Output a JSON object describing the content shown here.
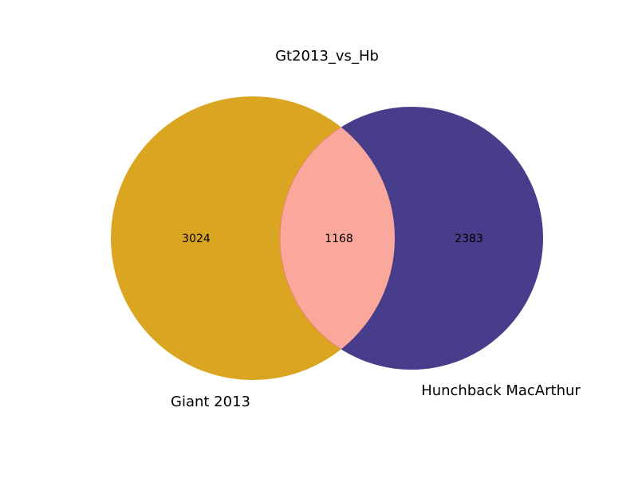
{
  "chart_data": {
    "type": "venn",
    "title": "Gt2013_vs_Hb",
    "sets": [
      {
        "name": "Giant 2013",
        "only_count": "3024",
        "color": "#DAA520"
      },
      {
        "name": "Hunchback MacArthur",
        "only_count": "2383",
        "color": "#483D8B"
      }
    ],
    "intersection": {
      "count": "1168",
      "color": "#FAA79C"
    }
  }
}
